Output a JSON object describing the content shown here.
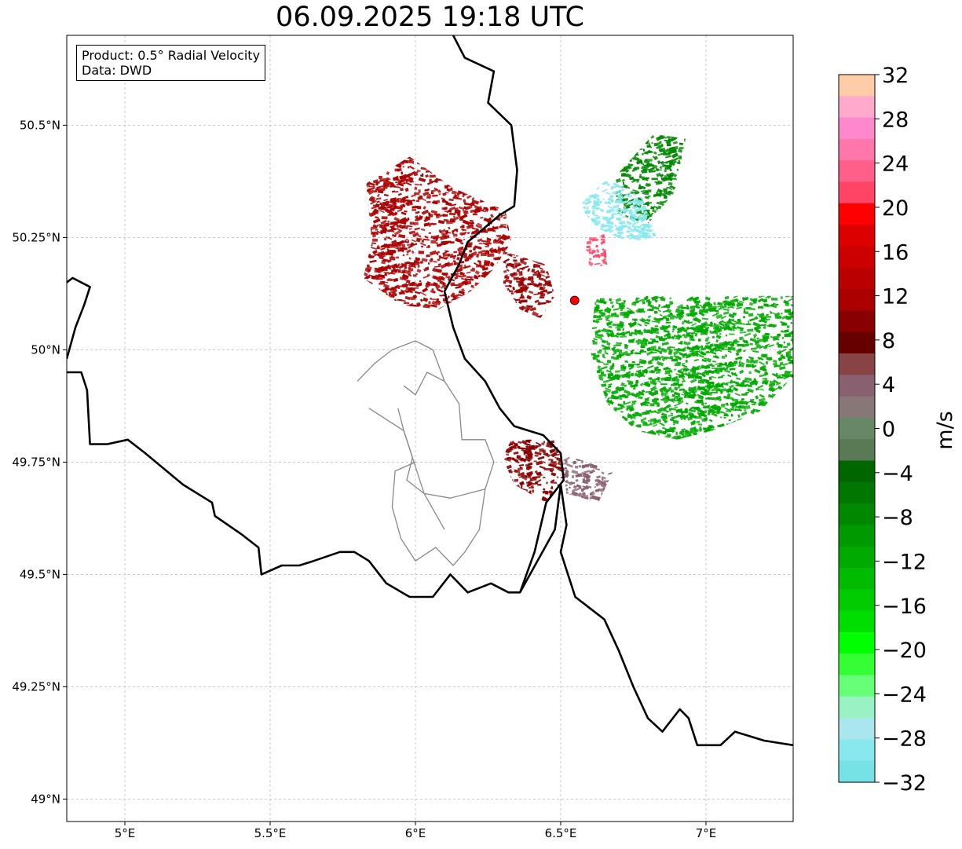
{
  "title": "06.09.2025 19:18 UTC",
  "info_box": {
    "product": "Product: 0.5° Radial Velocity",
    "source": "Data: DWD"
  },
  "map": {
    "lon_range": [
      4.8,
      7.3
    ],
    "lat_range": [
      48.95,
      50.7
    ],
    "x_ticks": [
      {
        "value": 5.0,
        "label": "5°E"
      },
      {
        "value": 5.5,
        "label": "5.5°E"
      },
      {
        "value": 6.0,
        "label": "6°E"
      },
      {
        "value": 6.5,
        "label": "6.5°E"
      },
      {
        "value": 7.0,
        "label": "7°E"
      }
    ],
    "y_ticks": [
      {
        "value": 49.0,
        "label": "49°N"
      },
      {
        "value": 49.25,
        "label": "49.25°N"
      },
      {
        "value": 49.5,
        "label": "49.5°N"
      },
      {
        "value": 49.75,
        "label": "49.75°N"
      },
      {
        "value": 50.0,
        "label": "50°N"
      },
      {
        "value": 50.25,
        "label": "50.25°N"
      },
      {
        "value": 50.5,
        "label": "50.5°N"
      }
    ],
    "grid": true,
    "radar_site": {
      "lon": 6.548,
      "lat": 50.11,
      "color": "#ff0000"
    },
    "border_color": "#000000",
    "admin_border_color": "#888888"
  },
  "colorbar": {
    "label": "m/s",
    "range": [
      -32,
      32
    ],
    "tick_values": [
      32,
      28,
      24,
      20,
      16,
      12,
      8,
      4,
      0,
      -4,
      -8,
      -12,
      -16,
      -20,
      -24,
      -28,
      -32
    ],
    "tick_labels": [
      "32",
      "28",
      "24",
      "20",
      "16",
      "12",
      "8",
      "4",
      "0",
      "−4",
      "−8",
      "−12",
      "−16",
      "−20",
      "−24",
      "−28",
      "−32"
    ],
    "colors_top_to_bottom": [
      "#ffccaa",
      "#ffaacc",
      "#ff88cc",
      "#ff77aa",
      "#ff5f88",
      "#ff4466",
      "#ff0000",
      "#dd0000",
      "#cc0000",
      "#bb0000",
      "#aa0000",
      "#880000",
      "#660000",
      "#884444",
      "#886070",
      "#887777",
      "#668866",
      "#5a7a55",
      "#006600",
      "#007700",
      "#008800",
      "#009900",
      "#00aa00",
      "#00bb00",
      "#00cc00",
      "#00dd00",
      "#00ff00",
      "#33ff33",
      "#66ff77",
      "#99f2c4",
      "#aae6ee",
      "#88e8ee",
      "#77e2e6"
    ]
  },
  "velocity_regions": [
    {
      "name": "outbound-northwest",
      "color": "#aa0000",
      "polygon": [
        [
          5.83,
          50.37
        ],
        [
          5.98,
          50.43
        ],
        [
          6.13,
          50.36
        ],
        [
          6.31,
          50.31
        ],
        [
          6.33,
          50.24
        ],
        [
          6.27,
          50.18
        ],
        [
          6.19,
          50.13
        ],
        [
          6.08,
          50.09
        ],
        [
          5.95,
          50.1
        ],
        [
          5.82,
          50.16
        ],
        [
          5.85,
          50.24
        ]
      ]
    },
    {
      "name": "outbound-central",
      "color": "#990000",
      "polygon": [
        [
          6.3,
          50.22
        ],
        [
          6.45,
          50.19
        ],
        [
          6.48,
          50.12
        ],
        [
          6.43,
          50.07
        ],
        [
          6.36,
          50.09
        ],
        [
          6.3,
          50.15
        ]
      ]
    },
    {
      "name": "outbound-south",
      "color": "#880000",
      "polygon": [
        [
          6.33,
          49.8
        ],
        [
          6.48,
          49.8
        ],
        [
          6.52,
          49.72
        ],
        [
          6.45,
          49.66
        ],
        [
          6.34,
          49.7
        ],
        [
          6.3,
          49.76
        ]
      ]
    },
    {
      "name": "weak-south",
      "color": "#886070",
      "polygon": [
        [
          6.5,
          49.77
        ],
        [
          6.68,
          49.73
        ],
        [
          6.63,
          49.66
        ],
        [
          6.52,
          49.68
        ]
      ]
    },
    {
      "name": "inbound-east",
      "color": "#00aa00",
      "polygon": [
        [
          6.62,
          50.12
        ],
        [
          6.82,
          50.12
        ],
        [
          7.0,
          50.12
        ],
        [
          7.3,
          50.12
        ],
        [
          7.3,
          49.94
        ],
        [
          7.18,
          49.86
        ],
        [
          7.02,
          49.82
        ],
        [
          6.9,
          49.8
        ],
        [
          6.76,
          49.82
        ],
        [
          6.66,
          49.88
        ],
        [
          6.6,
          50.0
        ]
      ]
    },
    {
      "name": "inbound-northeast",
      "color": "#008800",
      "polygon": [
        [
          6.68,
          50.38
        ],
        [
          6.82,
          50.48
        ],
        [
          6.93,
          50.47
        ],
        [
          6.89,
          50.35
        ],
        [
          6.8,
          50.28
        ],
        [
          6.7,
          50.3
        ]
      ]
    },
    {
      "name": "strong-inbound-northeast",
      "color": "#88e8ee",
      "polygon": [
        [
          6.56,
          50.32
        ],
        [
          6.66,
          50.38
        ],
        [
          6.78,
          50.34
        ],
        [
          6.83,
          50.25
        ],
        [
          6.73,
          50.24
        ],
        [
          6.63,
          50.27
        ]
      ]
    },
    {
      "name": "strong-outbound-near-radar",
      "color": "#ff4466",
      "polygon": [
        [
          6.58,
          50.25
        ],
        [
          6.65,
          50.26
        ],
        [
          6.66,
          50.19
        ],
        [
          6.6,
          50.18
        ]
      ]
    }
  ],
  "borders": {
    "national": [
      [
        [
          6.13,
          50.7
        ],
        [
          6.17,
          50.65
        ],
        [
          6.27,
          50.62
        ],
        [
          6.25,
          50.55
        ],
        [
          6.33,
          50.5
        ],
        [
          6.35,
          50.4
        ],
        [
          6.34,
          50.32
        ],
        [
          6.29,
          50.3
        ],
        [
          6.18,
          50.24
        ],
        [
          6.15,
          50.19
        ],
        [
          6.1,
          50.13
        ],
        [
          6.13,
          50.05
        ],
        [
          6.17,
          49.98
        ],
        [
          6.24,
          49.93
        ],
        [
          6.29,
          49.87
        ],
        [
          6.34,
          49.83
        ],
        [
          6.44,
          49.81
        ],
        [
          6.5,
          49.77
        ],
        [
          6.51,
          49.71
        ],
        [
          6.45,
          49.66
        ],
        [
          6.41,
          49.55
        ],
        [
          6.36,
          49.46
        ],
        [
          6.32,
          49.46
        ],
        [
          6.26,
          49.48
        ],
        [
          6.18,
          49.46
        ],
        [
          6.12,
          49.5
        ],
        [
          6.06,
          49.45
        ],
        [
          5.98,
          49.45
        ],
        [
          5.9,
          49.48
        ],
        [
          5.84,
          49.53
        ],
        [
          5.79,
          49.55
        ],
        [
          5.74,
          49.55
        ],
        [
          5.65,
          49.53
        ],
        [
          5.6,
          49.52
        ],
        [
          5.54,
          49.52
        ],
        [
          5.47,
          49.5
        ],
        [
          5.46,
          49.56
        ],
        [
          5.4,
          49.59
        ],
        [
          5.31,
          49.63
        ],
        [
          5.3,
          49.66
        ],
        [
          5.2,
          49.7
        ],
        [
          5.07,
          49.77
        ],
        [
          5.01,
          49.8
        ],
        [
          4.94,
          49.79
        ],
        [
          4.88,
          49.79
        ],
        [
          4.87,
          49.91
        ],
        [
          4.85,
          49.95
        ],
        [
          4.8,
          49.95
        ]
      ],
      [
        [
          4.8,
          50.15
        ],
        [
          4.82,
          50.16
        ],
        [
          4.88,
          50.14
        ],
        [
          4.86,
          50.1
        ],
        [
          4.83,
          50.05
        ],
        [
          4.8,
          49.98
        ]
      ],
      [
        [
          6.5,
          49.7
        ],
        [
          6.52,
          49.61
        ],
        [
          6.5,
          49.55
        ],
        [
          6.55,
          49.45
        ],
        [
          6.65,
          49.4
        ],
        [
          6.7,
          49.33
        ],
        [
          6.75,
          49.25
        ],
        [
          6.8,
          49.18
        ],
        [
          6.85,
          49.15
        ],
        [
          6.91,
          49.2
        ],
        [
          6.94,
          49.18
        ],
        [
          6.97,
          49.12
        ],
        [
          7.05,
          49.12
        ],
        [
          7.1,
          49.15
        ],
        [
          7.2,
          49.13
        ],
        [
          7.3,
          49.12
        ]
      ],
      [
        [
          6.5,
          49.7
        ],
        [
          6.48,
          49.6
        ],
        [
          6.36,
          49.46
        ]
      ]
    ],
    "admin": [
      [
        [
          5.96,
          49.92
        ],
        [
          6.0,
          49.9
        ],
        [
          6.04,
          49.95
        ],
        [
          6.1,
          49.93
        ],
        [
          6.15,
          49.88
        ],
        [
          6.16,
          49.8
        ],
        [
          6.24,
          49.8
        ],
        [
          6.27,
          49.75
        ],
        [
          6.24,
          49.69
        ],
        [
          6.12,
          49.67
        ],
        [
          6.03,
          49.68
        ],
        [
          5.97,
          49.71
        ],
        [
          5.99,
          49.76
        ],
        [
          5.96,
          49.82
        ],
        [
          5.94,
          49.87
        ]
      ],
      [
        [
          6.0,
          49.75
        ],
        [
          5.93,
          49.73
        ],
        [
          5.92,
          49.65
        ],
        [
          5.95,
          49.58
        ],
        [
          6.0,
          49.53
        ],
        [
          6.07,
          49.56
        ],
        [
          6.13,
          49.52
        ],
        [
          6.17,
          49.55
        ],
        [
          6.22,
          49.6
        ],
        [
          6.24,
          49.69
        ]
      ],
      [
        [
          5.84,
          49.87
        ],
        [
          5.96,
          49.82
        ],
        [
          5.99,
          49.76
        ],
        [
          6.03,
          49.68
        ],
        [
          6.1,
          49.6
        ]
      ],
      [
        [
          6.1,
          49.93
        ],
        [
          6.06,
          50.0
        ],
        [
          6.0,
          50.02
        ],
        [
          5.92,
          50.0
        ],
        [
          5.86,
          49.97
        ],
        [
          5.8,
          49.93
        ]
      ]
    ]
  }
}
